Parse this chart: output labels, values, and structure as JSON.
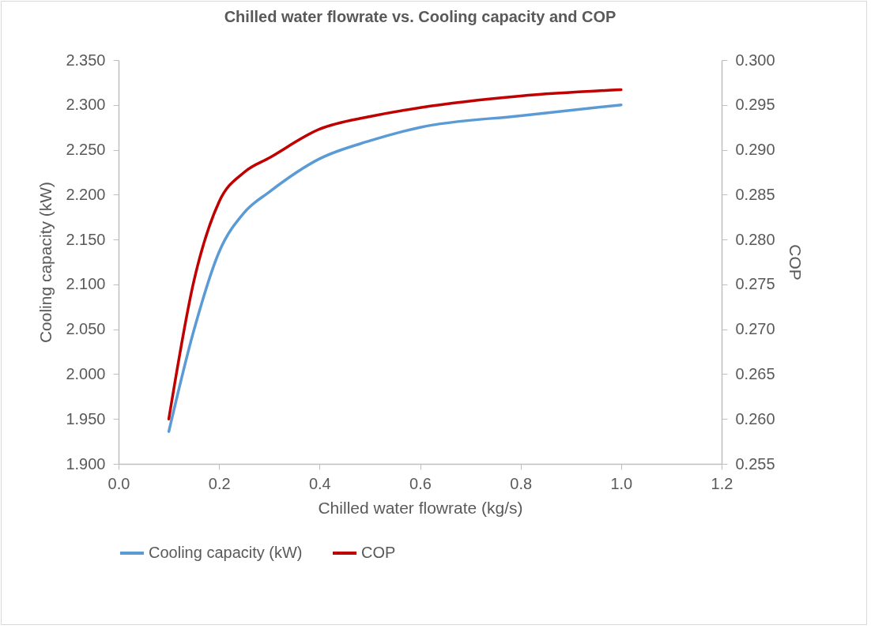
{
  "chart_data": {
    "type": "line",
    "title": "Chilled water flowrate vs. Cooling capacity and COP",
    "xlabel": "Chilled water flowrate (kg/s)",
    "ylabel": "Cooling capacity (kW)",
    "y2label": "COP",
    "x": [
      0.1,
      0.15,
      0.2,
      0.25,
      0.3,
      0.4,
      0.5,
      0.6,
      0.8,
      1.0
    ],
    "series": [
      {
        "name": "Cooling capacity (kW)",
        "color": "#5b9bd5",
        "values": [
          1.936,
          2.049,
          2.136,
          2.18,
          2.203,
          2.24,
          2.26,
          2.275,
          2.288,
          2.3
        ]
      },
      {
        "name": "COP",
        "color": "#c00000",
        "axis": "y2",
        "values": [
          0.26,
          0.2754,
          0.2842,
          0.2875,
          0.2891,
          0.2923,
          0.2937,
          0.2947,
          0.296,
          0.2967
        ]
      }
    ],
    "xlim": [
      0,
      1.2
    ],
    "xticks": [
      {
        "value": 0,
        "label": "0.0"
      },
      {
        "value": 0.2,
        "label": "0.2"
      },
      {
        "value": 0.4,
        "label": "0.4"
      },
      {
        "value": 0.6,
        "label": "0.6"
      },
      {
        "value": 0.8,
        "label": "0.8"
      },
      {
        "value": 1.0,
        "label": "1.0"
      },
      {
        "value": 1.2,
        "label": "1.2"
      }
    ],
    "ylim": [
      1.9,
      2.35
    ],
    "yticks": [
      {
        "value": 1.9,
        "label": "1.900"
      },
      {
        "value": 1.95,
        "label": "1.950"
      },
      {
        "value": 2.0,
        "label": "2.000"
      },
      {
        "value": 2.05,
        "label": "2.050"
      },
      {
        "value": 2.1,
        "label": "2.100"
      },
      {
        "value": 2.15,
        "label": "2.150"
      },
      {
        "value": 2.2,
        "label": "2.200"
      },
      {
        "value": 2.25,
        "label": "2.250"
      },
      {
        "value": 2.3,
        "label": "2.300"
      },
      {
        "value": 2.35,
        "label": "2.350"
      }
    ],
    "y2lim": [
      0.255,
      0.3
    ],
    "y2ticks": [
      {
        "value": 0.255,
        "label": "0.255"
      },
      {
        "value": 0.26,
        "label": "0.260"
      },
      {
        "value": 0.265,
        "label": "0.265"
      },
      {
        "value": 0.27,
        "label": "0.270"
      },
      {
        "value": 0.275,
        "label": "0.275"
      },
      {
        "value": 0.28,
        "label": "0.280"
      },
      {
        "value": 0.285,
        "label": "0.285"
      },
      {
        "value": 0.29,
        "label": "0.290"
      },
      {
        "value": 0.295,
        "label": "0.295"
      },
      {
        "value": 0.3,
        "label": "0.300"
      }
    ],
    "grid": false,
    "legend": "bottom",
    "marker": "none",
    "line_style": "solid"
  }
}
